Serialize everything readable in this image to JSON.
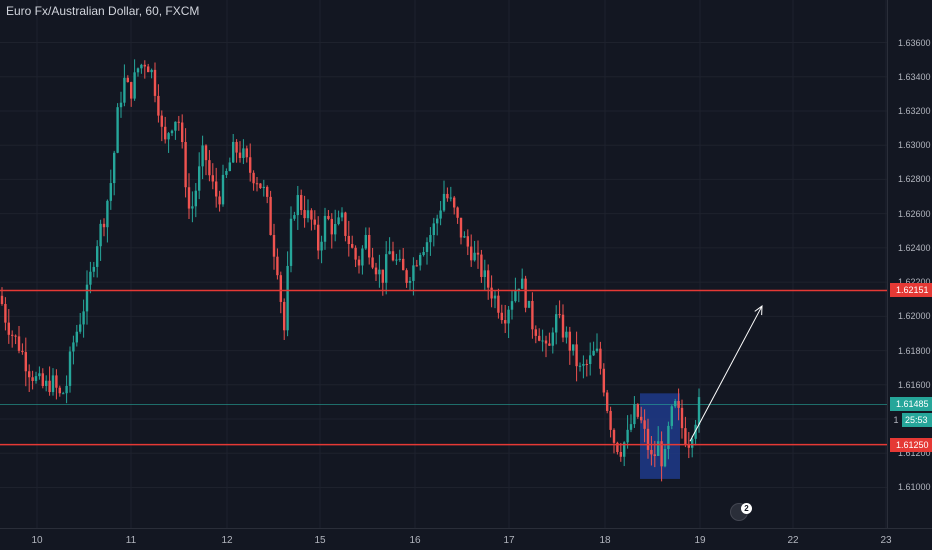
{
  "title": "Euro Fx/Australian Dollar, 60, FXCM",
  "colors": {
    "background": "#131722",
    "up": "#26a69a",
    "down": "#ef5350",
    "horizontal_line": "#e53935",
    "grid": "#1e222d",
    "current_price_line": "#26a69a",
    "highlight_box": "#1e3a8a",
    "arrow": "#ffffff"
  },
  "price_tags": {
    "upper_level": "1.62151",
    "lower_level": "1.61250",
    "current_price": "1.61485",
    "countdown": "25:53",
    "partial_label": "1"
  },
  "badge": {
    "count": "2"
  },
  "chart_data": {
    "type": "candlestick",
    "symbol": "Euro Fx/Australian Dollar",
    "interval": "60",
    "source": "FXCM",
    "x_ticks": [
      "10",
      "11",
      "12",
      "15",
      "16",
      "17",
      "18",
      "19",
      "22",
      "23"
    ],
    "y_ticks": [
      "1.63600",
      "1.63400",
      "1.63200",
      "1.63000",
      "1.62800",
      "1.62600",
      "1.62400",
      "1.62200",
      "1.62000",
      "1.61800",
      "1.61600",
      "1.61400",
      "1.61200",
      "1.61000"
    ],
    "ylim": [
      1.6088,
      1.6372
    ],
    "horizontal_lines": [
      1.62151,
      1.6125
    ],
    "current_price": 1.61485,
    "highlight_range": {
      "start_x": "18",
      "end_x": "19",
      "low": 1.6105,
      "high": 1.6155
    },
    "arrow": {
      "from": 1.6127,
      "to": 1.6206
    },
    "path": [
      [
        0,
        1.6212
      ],
      [
        6,
        1.6198
      ],
      [
        12,
        1.619
      ],
      [
        20,
        1.6182
      ],
      [
        28,
        1.617
      ],
      [
        36,
        1.6163
      ],
      [
        44,
        1.6158
      ],
      [
        52,
        1.6162
      ],
      [
        60,
        1.6153
      ],
      [
        66,
        1.6158
      ],
      [
        72,
        1.6182
      ],
      [
        80,
        1.6198
      ],
      [
        88,
        1.6215
      ],
      [
        96,
        1.6242
      ],
      [
        104,
        1.6258
      ],
      [
        112,
        1.6282
      ],
      [
        118,
        1.632
      ],
      [
        124,
        1.6338
      ],
      [
        130,
        1.633
      ],
      [
        138,
        1.6345
      ],
      [
        146,
        1.635
      ],
      [
        152,
        1.6342
      ],
      [
        158,
        1.6325
      ],
      [
        164,
        1.6298
      ],
      [
        170,
        1.6312
      ],
      [
        178,
        1.6318
      ],
      [
        184,
        1.6288
      ],
      [
        190,
        1.6258
      ],
      [
        196,
        1.6275
      ],
      [
        204,
        1.6298
      ],
      [
        210,
        1.628
      ],
      [
        218,
        1.6268
      ],
      [
        226,
        1.6282
      ],
      [
        234,
        1.6298
      ],
      [
        242,
        1.6295
      ],
      [
        250,
        1.6285
      ],
      [
        258,
        1.628
      ],
      [
        266,
        1.627
      ],
      [
        272,
        1.6245
      ],
      [
        278,
        1.6228
      ],
      [
        284,
        1.619
      ],
      [
        290,
        1.6248
      ],
      [
        296,
        1.627
      ],
      [
        304,
        1.6262
      ],
      [
        312,
        1.6255
      ],
      [
        318,
        1.624
      ],
      [
        326,
        1.6258
      ],
      [
        334,
        1.625
      ],
      [
        342,
        1.6256
      ],
      [
        350,
        1.6242
      ],
      [
        358,
        1.623
      ],
      [
        366,
        1.6246
      ],
      [
        374,
        1.6232
      ],
      [
        382,
        1.6222
      ],
      [
        390,
        1.6238
      ],
      [
        398,
        1.623
      ],
      [
        406,
        1.6222
      ],
      [
        414,
        1.623
      ],
      [
        420,
        1.624
      ],
      [
        428,
        1.6245
      ],
      [
        436,
        1.6255
      ],
      [
        444,
        1.6272
      ],
      [
        452,
        1.6265
      ],
      [
        460,
        1.625
      ],
      [
        466,
        1.6242
      ],
      [
        472,
        1.6238
      ],
      [
        480,
        1.6228
      ],
      [
        488,
        1.6218
      ],
      [
        496,
        1.621
      ],
      [
        504,
        1.62
      ],
      [
        512,
        1.6212
      ],
      [
        520,
        1.6222
      ],
      [
        526,
        1.621
      ],
      [
        532,
        1.6196
      ],
      [
        540,
        1.619
      ],
      [
        548,
        1.6175
      ],
      [
        554,
        1.62
      ],
      [
        560,
        1.6195
      ],
      [
        566,
        1.6188
      ],
      [
        572,
        1.618
      ],
      [
        580,
        1.6168
      ],
      [
        588,
        1.6172
      ],
      [
        596,
        1.618
      ],
      [
        602,
        1.6166
      ],
      [
        608,
        1.6145
      ],
      [
        614,
        1.6128
      ],
      [
        620,
        1.6122
      ],
      [
        628,
        1.613
      ],
      [
        634,
        1.6144
      ],
      [
        640,
        1.614
      ],
      [
        646,
        1.6128
      ],
      [
        652,
        1.6115
      ],
      [
        658,
        1.6125
      ],
      [
        664,
        1.6112
      ],
      [
        670,
        1.614
      ],
      [
        676,
        1.6148
      ],
      [
        682,
        1.6135
      ],
      [
        688,
        1.6126
      ],
      [
        694,
        1.6138
      ],
      [
        700,
        1.615
      ]
    ]
  }
}
